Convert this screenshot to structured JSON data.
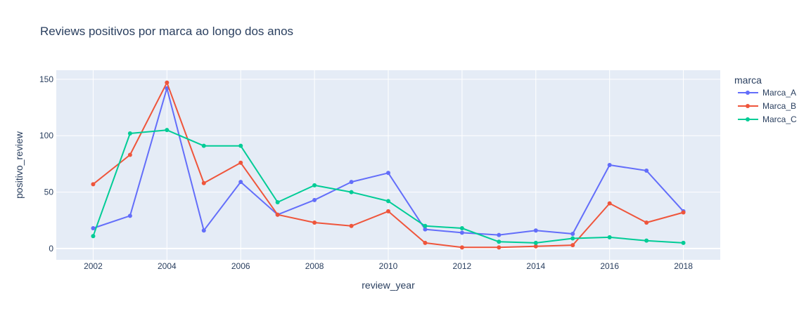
{
  "chart_data": {
    "type": "line",
    "title": "Reviews positivos por marca ao longo dos anos",
    "xlabel": "review_year",
    "ylabel": "positivo_review",
    "xlim": [
      2001,
      2019
    ],
    "ylim": [
      -10,
      158
    ],
    "xticks": [
      2002,
      2004,
      2006,
      2008,
      2010,
      2012,
      2014,
      2016,
      2018
    ],
    "yticks": [
      0,
      50,
      100,
      150
    ],
    "x": [
      2002,
      2003,
      2004,
      2005,
      2006,
      2007,
      2008,
      2009,
      2010,
      2011,
      2012,
      2013,
      2014,
      2015,
      2016,
      2017,
      2018
    ],
    "legend_title": "marca",
    "series": [
      {
        "name": "Marca_A",
        "color": "#636efa",
        "values": [
          18,
          29,
          142,
          16,
          59,
          30,
          43,
          59,
          67,
          17,
          14,
          12,
          16,
          13,
          74,
          69,
          33
        ]
      },
      {
        "name": "Marca_B",
        "color": "#ef553b",
        "values": [
          57,
          83,
          147,
          58,
          76,
          30,
          23,
          20,
          33,
          5,
          1,
          1,
          2,
          3,
          40,
          23,
          32
        ]
      },
      {
        "name": "Marca_C",
        "color": "#00cc96",
        "values": [
          11,
          102,
          105,
          91,
          91,
          41,
          56,
          50,
          42,
          20,
          18,
          6,
          5,
          9,
          10,
          7,
          5
        ]
      }
    ]
  }
}
